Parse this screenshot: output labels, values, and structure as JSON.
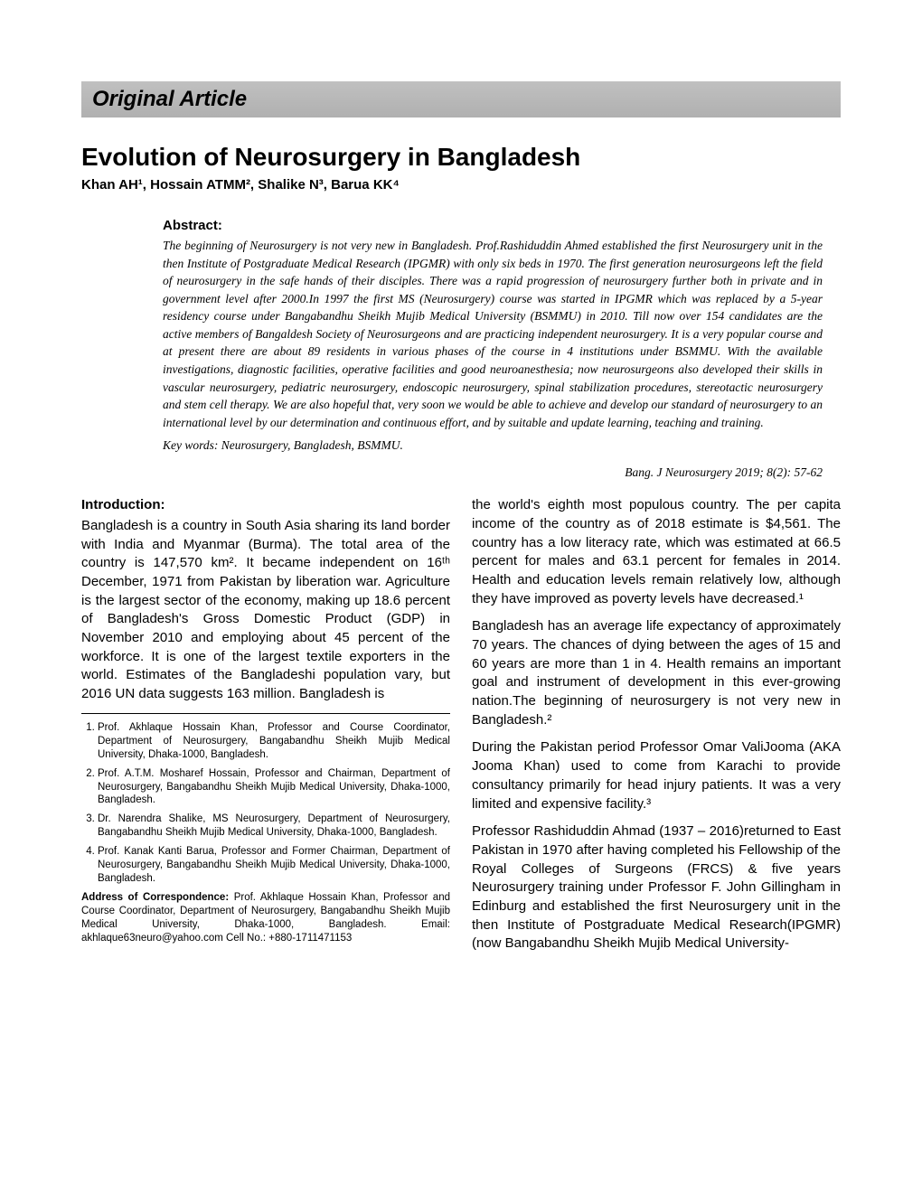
{
  "banner": {
    "label": "Original Article"
  },
  "title": "Evolution of Neurosurgery in Bangladesh",
  "authors_html": "Khan AH¹, Hossain ATMM², Shalike N³, Barua KK⁴",
  "abstract": {
    "heading": "Abstract:",
    "text": "The beginning of Neurosurgery is not very new in Bangladesh. Prof.Rashiduddin Ahmed established the first Neurosurgery unit in the then Institute of Postgraduate Medical Research (IPGMR) with only six beds in 1970. The first generation neurosurgeons left the field of neurosurgery in the safe hands of their disciples. There was a rapid progression of neurosurgery further both in private and in government level after 2000.In 1997 the first MS (Neurosurgery) course was started in IPGMR which was replaced by a 5-year residency course under Bangabandhu Sheikh Mujib Medical University (BSMMU) in 2010. Till now over 154 candidates are the active members of Bangaldesh Society of Neurosurgeons and are practicing independent neurosurgery. It is a very popular course and at present there are about 89 residents in various phases of the course in 4 institutions under BSMMU. With the available investigations, diagnostic facilities, operative facilities and good neuroanesthesia; now neurosurgeons also developed their skills in vascular neurosurgery, pediatric neurosurgery, endoscopic neurosurgery, spinal stabilization procedures, stereotactic neurosurgery and stem cell therapy. We are also hopeful that, very soon we would be able to achieve and develop our standard of neurosurgery to an international level by our determination and continuous effort, and by suitable and update learning, teaching and training.",
    "keywords": "Key words: Neurosurgery, Bangladesh, BSMMU."
  },
  "citation": "Bang. J Neurosurgery 2019; 8(2): 57-62",
  "intro": {
    "heading": "Introduction:",
    "left_p1": "Bangladesh is a country in South Asia sharing its land border with India and Myanmar (Burma). The total area of the country is 147,570 km². It became independent on 16ᵗʰ December, 1971 from Pakistan by liberation war. Agriculture is the largest sector of the economy, making up 18.6 percent of Bangladesh's Gross Domestic Product (GDP) in November 2010 and employing about 45 percent of the workforce. It is one of the largest textile exporters in the world. Estimates of the Bangladeshi population vary, but 2016 UN data suggests 163 million. Bangladesh is",
    "right_p1": "the world's eighth most populous country. The per capita income of the country as of 2018 estimate is $4,561. The country has a low literacy rate, which was estimated at 66.5 percent for males and 63.1 percent for females in 2014. Health and education levels remain relatively low, although they have improved as poverty levels have decreased.¹",
    "right_p2": "Bangladesh has an average life expectancy of approximately 70 years. The chances of dying between the ages of 15 and 60 years are more than 1 in 4. Health remains an important goal and instrument of development in this ever-growing nation.The beginning of neurosurgery is not very new in Bangladesh.²",
    "right_p3": "During the Pakistan period Professor Omar ValiJooma (AKA Jooma Khan) used to come from Karachi to provide consultancy primarily for head injury patients. It was a very limited and expensive facility.³",
    "right_p4": "Professor Rashiduddin Ahmad (1937 – 2016)returned to East Pakistan in 1970 after having completed his Fellowship of the Royal Colleges of Surgeons (FRCS) & five years Neurosurgery training under Professor F. John Gillingham in Edinburg and established the first Neurosurgery unit in the then Institute of Postgraduate Medical Research(IPGMR) (now Bangabandhu Sheikh Mujib Medical University-"
  },
  "affiliations": {
    "a1": "Prof. Akhlaque Hossain Khan, Professor and Course Coordinator, Department of Neurosurgery, Bangabandhu Sheikh Mujib Medical University, Dhaka-1000, Bangladesh.",
    "a2": "Prof. A.T.M. Mosharef Hossain, Professor and Chairman, Department of Neurosurgery, Bangabandhu Sheikh Mujib Medical University, Dhaka-1000, Bangladesh.",
    "a3": "Dr. Narendra Shalike, MS Neurosurgery, Department of Neurosurgery, Bangabandhu Sheikh Mujib Medical University, Dhaka-1000, Bangladesh.",
    "a4": "Prof. Kanak Kanti Barua, Professor and Former Chairman, Department of Neurosurgery, Bangabandhu Sheikh Mujib Medical University, Dhaka-1000, Bangladesh."
  },
  "correspondence": {
    "label": "Address of Correspondence: ",
    "text": "Prof. Akhlaque Hossain Khan, Professor and Course Coordinator, Department of Neurosurgery, Bangabandhu Sheikh Mujib Medical University, Dhaka-1000, Bangladesh. Email: akhlaque63neuro@yahoo.com Cell No.: +880-1711471153"
  }
}
